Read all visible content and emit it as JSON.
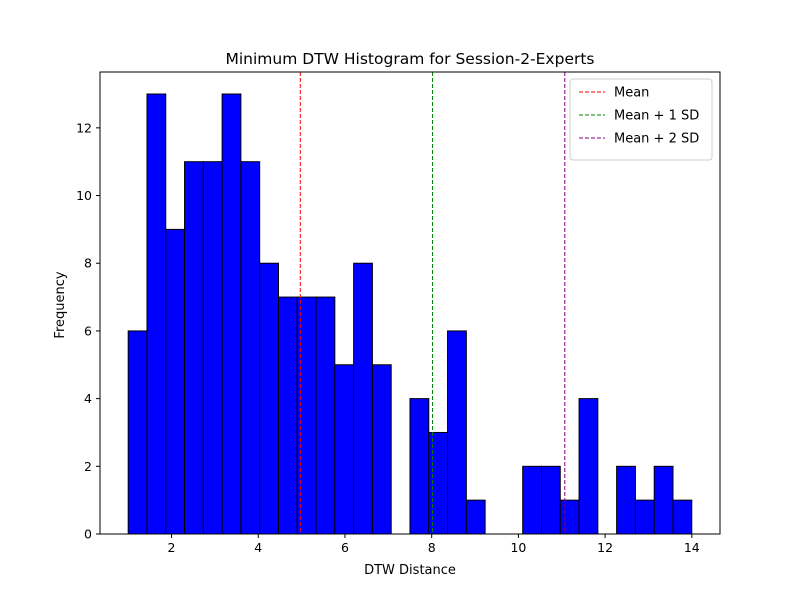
{
  "chart_data": {
    "type": "bar",
    "title": "Minimum DTW Histogram for Session-2-Experts",
    "xlabel": "DTW Distance",
    "ylabel": "Frequency",
    "xlim": [
      0.35,
      14.65
    ],
    "ylim": [
      0,
      13.65
    ],
    "xticks": [
      2,
      4,
      6,
      8,
      10,
      12,
      14
    ],
    "yticks": [
      0,
      2,
      4,
      6,
      8,
      10,
      12
    ],
    "bar_color": "#0000ff",
    "bar_edge_color": "#000000",
    "bins": {
      "start": 1.0,
      "width": 0.4333,
      "counts": [
        6,
        13,
        9,
        11,
        11,
        13,
        11,
        8,
        7,
        7,
        7,
        5,
        8,
        5,
        0,
        4,
        3,
        6,
        1,
        0,
        0,
        2,
        2,
        1,
        4,
        0,
        2,
        1,
        2,
        1
      ]
    },
    "reference_lines": [
      {
        "name": "Mean",
        "x": 4.97,
        "color": "#ff0000"
      },
      {
        "name": "Mean + 1 SD",
        "x": 8.02,
        "color": "#008000"
      },
      {
        "name": "Mean + 2 SD",
        "x": 11.07,
        "color": "#800080"
      }
    ],
    "legend": {
      "position": "top-right"
    }
  }
}
